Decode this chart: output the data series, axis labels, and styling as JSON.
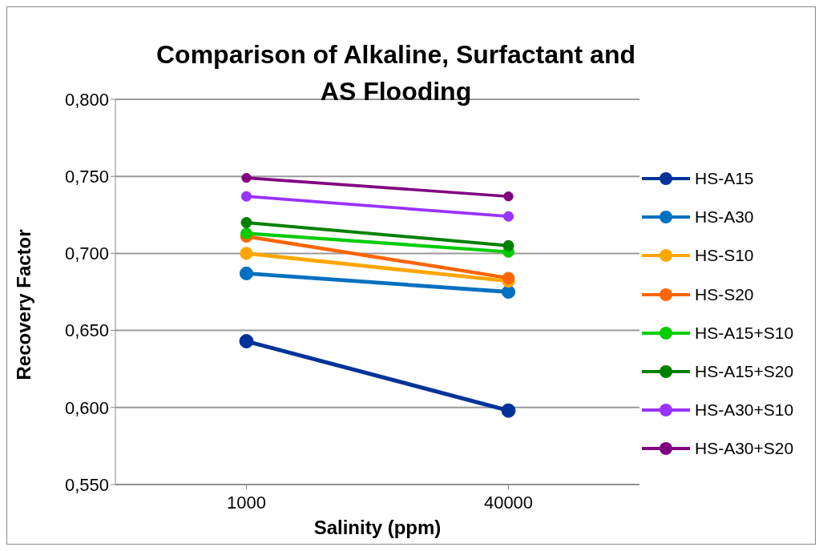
{
  "chart_data": {
    "type": "line",
    "title": "Comparison of Alkaline, Surfactant and AS Flooding",
    "xlabel": "Salinity (ppm)",
    "ylabel": "Recovery Factor",
    "categories": [
      "1000",
      "40000"
    ],
    "series": [
      {
        "name": "HS-A15",
        "color": "#003399",
        "values": [
          0.643,
          0.598
        ]
      },
      {
        "name": "HS-A30",
        "color": "#0070c0",
        "values": [
          0.687,
          0.675
        ]
      },
      {
        "name": "HS-S10",
        "color": "#ffa500",
        "values": [
          0.7,
          0.682
        ]
      },
      {
        "name": "HS-S20",
        "color": "#ff6600",
        "values": [
          0.711,
          0.684
        ]
      },
      {
        "name": "HS-A15+S10",
        "color": "#00cc00",
        "values": [
          0.713,
          0.701
        ]
      },
      {
        "name": "HS-A15+S20",
        "color": "#008000",
        "values": [
          0.72,
          0.705
        ]
      },
      {
        "name": "HS-A30+S10",
        "color": "#9933ff",
        "values": [
          0.737,
          0.724
        ]
      },
      {
        "name": "HS-A30+S20",
        "color": "#800080",
        "values": [
          0.749,
          0.737
        ]
      }
    ],
    "ylim": [
      0.55,
      0.8
    ],
    "yticks": [
      {
        "value": 0.55,
        "label": "0,550"
      },
      {
        "value": 0.6,
        "label": "0,600"
      },
      {
        "value": 0.65,
        "label": "0,650"
      },
      {
        "value": 0.7,
        "label": "0,700"
      },
      {
        "value": 0.75,
        "label": "0,750"
      },
      {
        "value": 0.8,
        "label": "0,800"
      }
    ],
    "grid": "y",
    "legend": "right",
    "marker": "circle",
    "line_style": "solid"
  }
}
